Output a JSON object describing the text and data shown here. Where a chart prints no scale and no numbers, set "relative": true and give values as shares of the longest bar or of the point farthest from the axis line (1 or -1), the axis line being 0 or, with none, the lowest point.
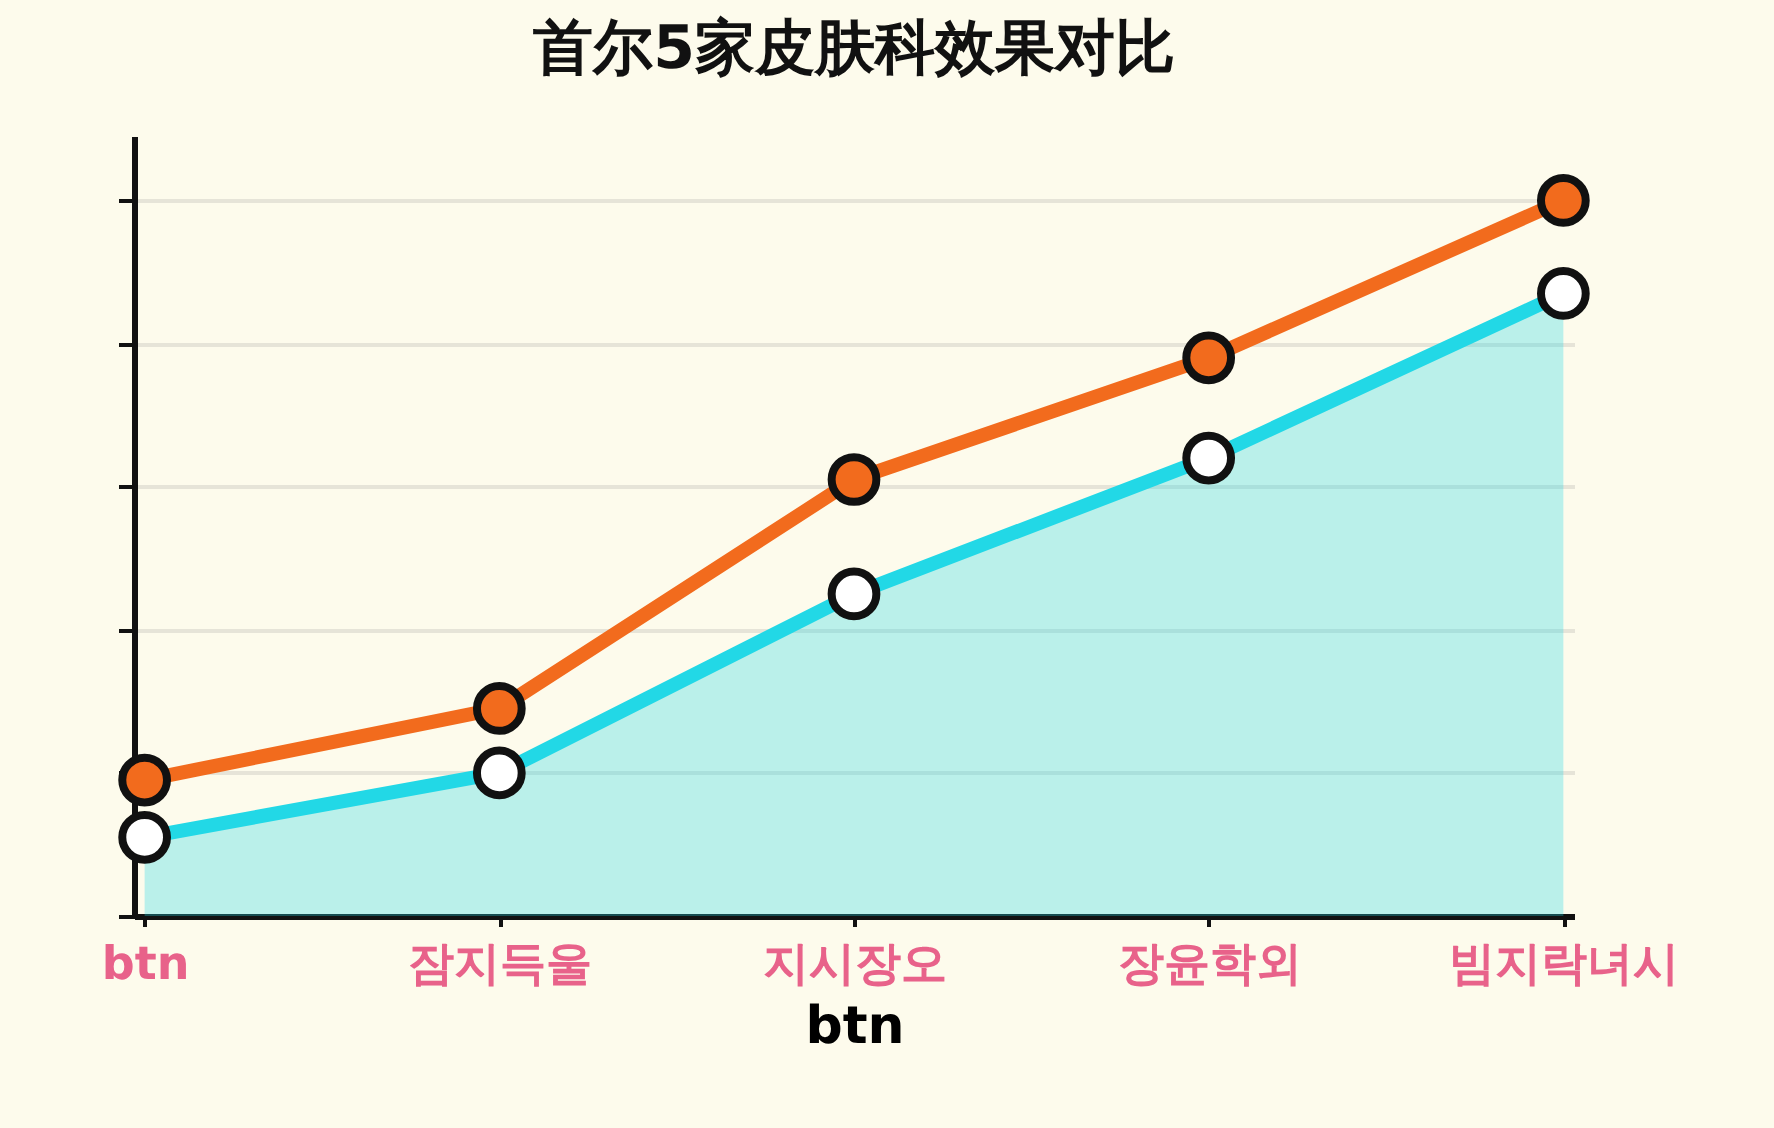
{
  "chart_data": {
    "type": "line",
    "title": "首尔5家皮肤科效果对比",
    "xlabel": "btn",
    "relative": true,
    "grid": "y",
    "marker": "circle",
    "line_style": "solid",
    "categories": [
      "btn",
      "잠지득울",
      "지시장오",
      "장윤학외",
      "빔지락녀시"
    ],
    "series": [
      {
        "type": "area",
        "color": "#22d8e6",
        "values": [
          0.11,
          0.2,
          0.45,
          0.64,
          0.87
        ]
      },
      {
        "color": "#f26b1d",
        "values": [
          0.19,
          0.29,
          0.61,
          0.78,
          1
        ]
      }
    ]
  }
}
